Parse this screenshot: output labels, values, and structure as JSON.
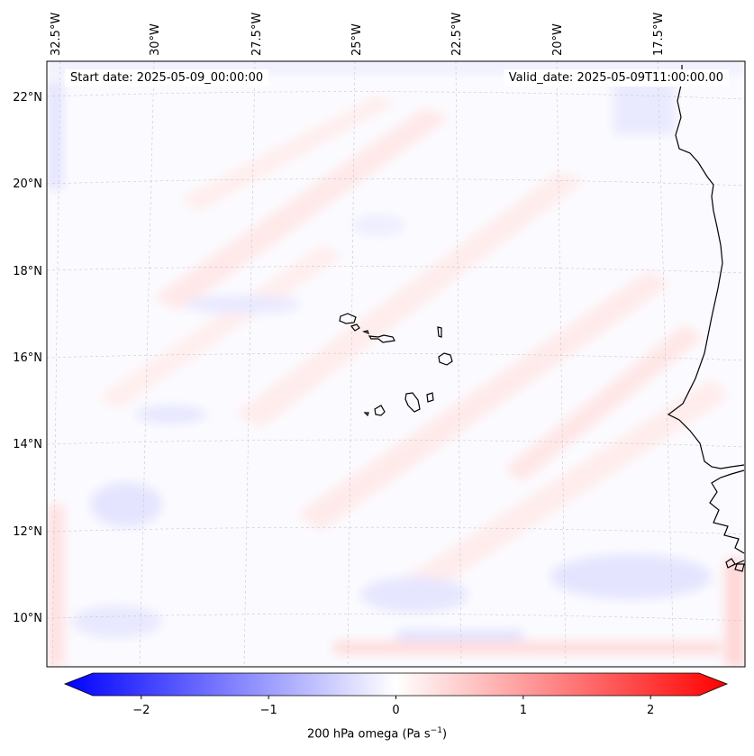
{
  "header": {
    "start_label": "Start date: 2025-05-09_00:00:00",
    "valid_label": "Valid_date: 2025-05-09T11:00:00.00"
  },
  "lon_labels": [
    "32.5°W",
    "30°W",
    "27.5°W",
    "25°W",
    "22.5°W",
    "20°W",
    "17.5°W"
  ],
  "lat_labels": [
    "22°N",
    "20°N",
    "18°N",
    "16°N",
    "14°N",
    "12°N",
    "10°N"
  ],
  "colorbar": {
    "ticks": [
      "−2",
      "−1",
      "0",
      "1",
      "2"
    ],
    "label_text": "200 hPa omega (Pa s",
    "label_exp": "−1",
    "label_close": ")",
    "min": -2.6,
    "max": 2.6,
    "tick_values": [
      -2,
      -1,
      0,
      1,
      2
    ],
    "colors": {
      "neg": "#0000ff",
      "zero": "#ffffff",
      "pos": "#ff0000"
    }
  }
}
